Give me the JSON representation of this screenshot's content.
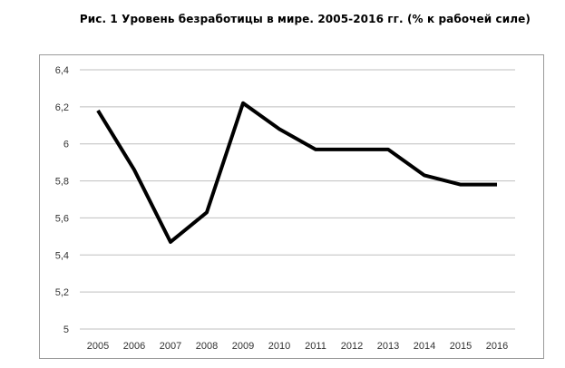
{
  "chart_data": {
    "type": "line",
    "title": "Рис. 1 Уровень безработицы в мире. 2005-2016 гг. (% к рабочей силе)",
    "xlabel": "",
    "ylabel": "",
    "categories": [
      "2005",
      "2006",
      "2007",
      "2008",
      "2009",
      "2010",
      "2011",
      "2012",
      "2013",
      "2014",
      "2015",
      "2016"
    ],
    "series": [
      {
        "values": [
          6.18,
          5.86,
          5.47,
          5.63,
          6.22,
          6.08,
          5.97,
          5.97,
          5.97,
          5.83,
          5.78,
          5.78
        ]
      }
    ],
    "ylim": [
      5,
      6.4
    ],
    "yticks": [
      5,
      5.2,
      5.4,
      5.6,
      5.8,
      6,
      6.2,
      6.4
    ],
    "ytick_labels": [
      "5",
      "5,2",
      "5,4",
      "5,6",
      "5,8",
      "6",
      "6,2",
      "6,4"
    ],
    "grid": true,
    "line_color": "#000000",
    "grid_color": "#bfbfbf"
  }
}
